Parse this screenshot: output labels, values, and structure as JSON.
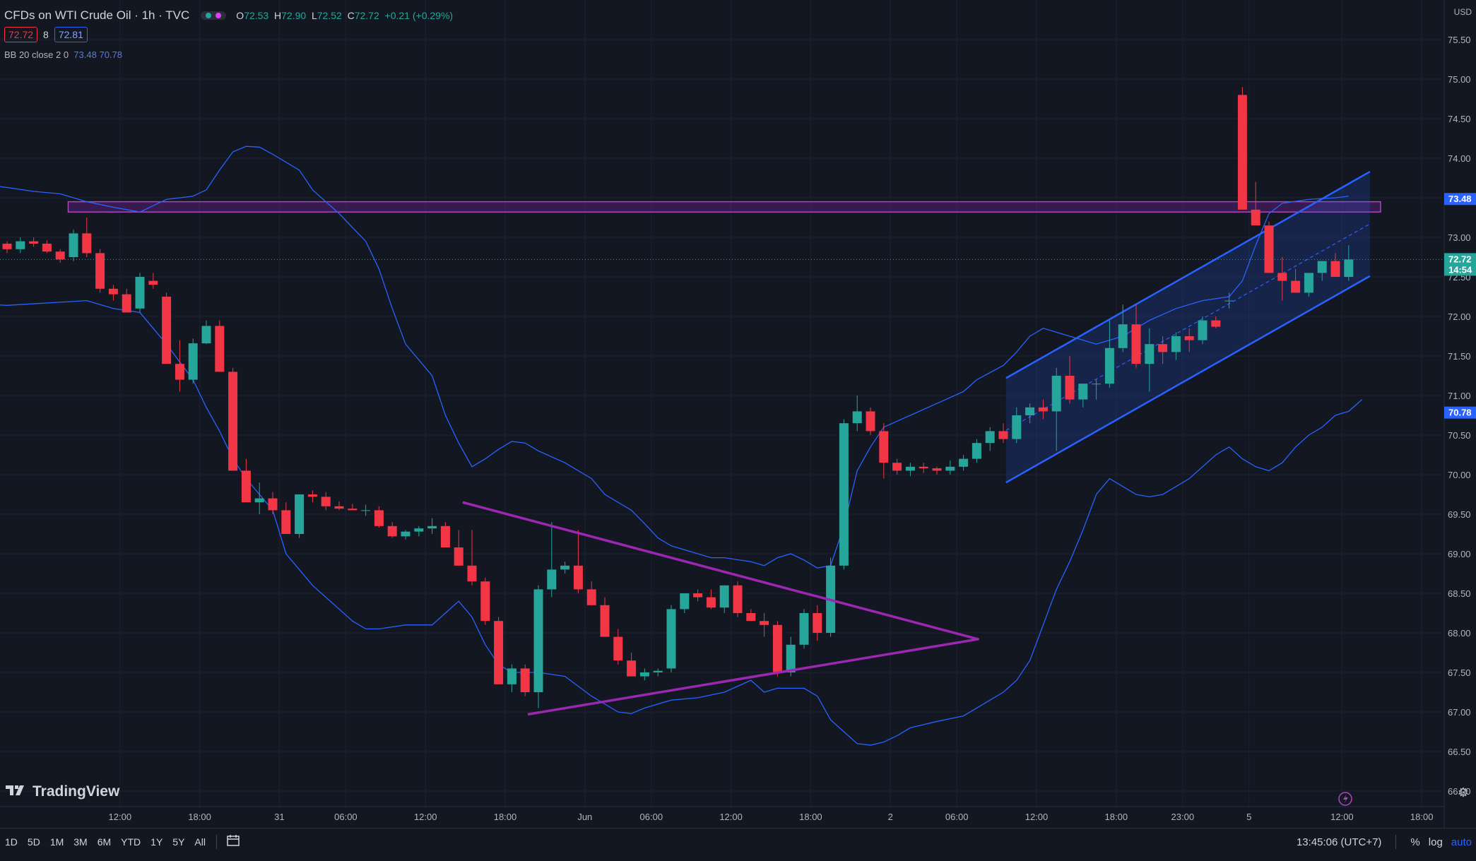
{
  "header": {
    "symbol_title": "CFDs on WTI Crude Oil · 1h · TVC",
    "status_colors": [
      "#26a69a",
      "#e040fb"
    ],
    "ohlc": [
      {
        "label": "O",
        "value": "72.53"
      },
      {
        "label": "H",
        "value": "72.90"
      },
      {
        "label": "L",
        "value": "72.52"
      },
      {
        "label": "C",
        "value": "72.72"
      },
      {
        "label": "",
        "value": "+0.21 (+0.29%)"
      }
    ],
    "sell_price": "72.72",
    "spread": "8",
    "buy_price": "72.81"
  },
  "indicator": {
    "name": "BB 20 close 2 0",
    "upper": "73.48",
    "lower": "70.78"
  },
  "currency": "USD",
  "logo_text": "TradingView",
  "price_labels": [
    {
      "text": "73.48",
      "color": "#2962ff"
    },
    {
      "text": "72.72\n14:54",
      "color": "#26a69a"
    },
    {
      "text": "70.78",
      "color": "#2962ff"
    }
  ],
  "timeframes": [
    "1D",
    "5D",
    "1M",
    "3M",
    "6M",
    "YTD",
    "1Y",
    "5Y",
    "All"
  ],
  "bottom_right": {
    "clock": "13:45:06 (UTC+7)",
    "percent": "%",
    "log": "log",
    "auto": "auto"
  },
  "icons": {
    "calendar": "calendar-range-icon",
    "settings": "gear-icon",
    "lightning": "lightning-icon",
    "logo": "tradingview-logo-icon"
  },
  "colors": {
    "background": "#131722",
    "up": "#26a69a",
    "down": "#f23645",
    "bb": "#2962ff",
    "pattern": "#9c27b0",
    "resistance_fill": "#7b1fa2",
    "channel": "#2962ff"
  },
  "chart_data": {
    "type": "candlestick",
    "title": "CFDs on WTI Crude Oil · 1h · TVC",
    "ylim": [
      65.8,
      75.9
    ],
    "y_ticks": [
      "75.50",
      "75.00",
      "74.50",
      "74.00",
      "73.50",
      "73.00",
      "72.50",
      "72.00",
      "71.50",
      "71.00",
      "70.50",
      "70.00",
      "69.50",
      "69.00",
      "68.50",
      "68.00",
      "67.50",
      "67.00",
      "66.50",
      "66.00"
    ],
    "x_ticks": [
      {
        "i": 8.5,
        "label": "12:00"
      },
      {
        "i": 14.5,
        "label": "18:00"
      },
      {
        "i": 20.5,
        "label": "31"
      },
      {
        "i": 25.5,
        "label": "06:00"
      },
      {
        "i": 31.5,
        "label": "12:00"
      },
      {
        "i": 37.5,
        "label": "18:00"
      },
      {
        "i": 43.5,
        "label": "Jun"
      },
      {
        "i": 48.5,
        "label": "06:00"
      },
      {
        "i": 54.5,
        "label": "12:00"
      },
      {
        "i": 60.5,
        "label": "18:00"
      },
      {
        "i": 66.5,
        "label": "2"
      },
      {
        "i": 71.5,
        "label": "06:00"
      },
      {
        "i": 77.5,
        "label": "12:00"
      },
      {
        "i": 83.5,
        "label": "18:00"
      },
      {
        "i": 88.5,
        "label": "23:00"
      },
      {
        "i": 93.5,
        "label": "5"
      },
      {
        "i": 100.5,
        "label": "12:00"
      },
      {
        "i": 106.5,
        "label": "18:00"
      }
    ],
    "candles": [
      [
        72.92,
        72.95,
        72.8,
        72.85
      ],
      [
        72.85,
        73.0,
        72.8,
        72.95
      ],
      [
        72.95,
        73.0,
        72.88,
        72.92
      ],
      [
        72.92,
        72.96,
        72.8,
        72.82
      ],
      [
        72.82,
        72.85,
        72.68,
        72.72
      ],
      [
        72.75,
        73.1,
        72.7,
        73.05
      ],
      [
        73.05,
        73.25,
        72.75,
        72.8
      ],
      [
        72.8,
        72.85,
        72.3,
        72.35
      ],
      [
        72.35,
        72.4,
        72.2,
        72.28
      ],
      [
        72.28,
        72.35,
        72.05,
        72.05
      ],
      [
        72.1,
        72.55,
        72.05,
        72.5
      ],
      [
        72.45,
        72.55,
        72.35,
        72.4
      ],
      [
        72.25,
        72.3,
        71.4,
        71.4
      ],
      [
        71.4,
        71.7,
        71.05,
        71.2
      ],
      [
        71.2,
        71.72,
        71.15,
        71.66
      ],
      [
        71.66,
        71.95,
        71.65,
        71.88
      ],
      [
        71.88,
        71.95,
        71.3,
        71.3
      ],
      [
        71.3,
        71.35,
        70.05,
        70.05
      ],
      [
        70.05,
        70.2,
        69.65,
        69.65
      ],
      [
        69.65,
        69.9,
        69.5,
        69.7
      ],
      [
        69.7,
        69.78,
        69.5,
        69.55
      ],
      [
        69.55,
        69.65,
        69.25,
        69.25
      ],
      [
        69.25,
        69.7,
        69.2,
        69.75
      ],
      [
        69.75,
        69.8,
        69.65,
        69.72
      ],
      [
        69.72,
        69.78,
        69.55,
        69.6
      ],
      [
        69.6,
        69.66,
        69.55,
        69.57
      ],
      [
        69.57,
        69.63,
        69.55,
        69.55
      ],
      [
        69.55,
        69.62,
        69.48,
        69.55
      ],
      [
        69.55,
        69.6,
        69.33,
        69.35
      ],
      [
        69.35,
        69.4,
        69.2,
        69.22
      ],
      [
        69.22,
        69.3,
        69.18,
        69.28
      ],
      [
        69.28,
        69.35,
        69.22,
        69.32
      ],
      [
        69.32,
        69.45,
        69.25,
        69.35
      ],
      [
        69.35,
        69.4,
        69.08,
        69.08
      ],
      [
        69.08,
        69.3,
        68.85,
        68.85
      ],
      [
        68.85,
        69.3,
        68.6,
        68.65
      ],
      [
        68.65,
        68.7,
        68.1,
        68.15
      ],
      [
        68.15,
        68.2,
        67.35,
        67.35
      ],
      [
        67.35,
        67.6,
        67.25,
        67.55
      ],
      [
        67.55,
        67.6,
        67.2,
        67.25
      ],
      [
        67.25,
        68.6,
        67.05,
        68.55
      ],
      [
        68.55,
        69.4,
        68.45,
        68.8
      ],
      [
        68.8,
        68.9,
        68.75,
        68.85
      ],
      [
        68.85,
        69.3,
        68.5,
        68.55
      ],
      [
        68.55,
        68.65,
        68.35,
        68.35
      ],
      [
        68.35,
        68.45,
        67.95,
        67.95
      ],
      [
        67.95,
        68.05,
        67.6,
        67.65
      ],
      [
        67.65,
        67.75,
        67.45,
        67.45
      ],
      [
        67.45,
        67.55,
        67.4,
        67.5
      ],
      [
        67.5,
        67.55,
        67.45,
        67.52
      ],
      [
        67.55,
        68.35,
        67.5,
        68.3
      ],
      [
        68.3,
        68.5,
        68.25,
        68.5
      ],
      [
        68.5,
        68.55,
        68.4,
        68.45
      ],
      [
        68.45,
        68.55,
        68.3,
        68.32
      ],
      [
        68.32,
        68.6,
        68.25,
        68.6
      ],
      [
        68.6,
        68.65,
        68.2,
        68.25
      ],
      [
        68.25,
        68.3,
        68.15,
        68.15
      ],
      [
        68.15,
        68.25,
        67.95,
        68.1
      ],
      [
        68.1,
        68.15,
        67.45,
        67.5
      ],
      [
        67.5,
        67.95,
        67.45,
        67.85
      ],
      [
        67.85,
        68.3,
        67.8,
        68.25
      ],
      [
        68.25,
        68.35,
        67.9,
        68.0
      ],
      [
        68.0,
        68.95,
        67.95,
        68.85
      ],
      [
        68.85,
        70.7,
        68.8,
        70.65
      ],
      [
        70.65,
        71.0,
        70.55,
        70.8
      ],
      [
        70.8,
        70.85,
        70.5,
        70.55
      ],
      [
        70.55,
        70.65,
        69.95,
        70.15
      ],
      [
        70.15,
        70.2,
        70.0,
        70.05
      ],
      [
        70.05,
        70.15,
        69.98,
        70.1
      ],
      [
        70.1,
        70.15,
        70.02,
        70.08
      ],
      [
        70.08,
        70.1,
        70.0,
        70.05
      ],
      [
        70.05,
        70.18,
        70.0,
        70.1
      ],
      [
        70.1,
        70.25,
        70.05,
        70.2
      ],
      [
        70.2,
        70.45,
        70.15,
        70.4
      ],
      [
        70.4,
        70.6,
        70.3,
        70.55
      ],
      [
        70.55,
        70.65,
        70.4,
        70.45
      ],
      [
        70.45,
        70.85,
        70.4,
        70.75
      ],
      [
        70.75,
        70.9,
        70.65,
        70.85
      ],
      [
        70.85,
        70.95,
        70.7,
        70.8
      ],
      [
        70.8,
        71.35,
        70.3,
        71.25
      ],
      [
        71.25,
        71.5,
        70.9,
        70.95
      ],
      [
        70.95,
        71.15,
        70.85,
        71.15
      ],
      [
        71.15,
        71.2,
        70.95,
        71.15
      ],
      [
        71.15,
        71.95,
        71.1,
        71.6
      ],
      [
        71.6,
        72.15,
        71.55,
        71.9
      ],
      [
        71.9,
        72.15,
        71.35,
        71.4
      ],
      [
        71.4,
        71.85,
        71.05,
        71.65
      ],
      [
        71.65,
        71.75,
        71.4,
        71.55
      ],
      [
        71.55,
        71.8,
        71.45,
        71.75
      ],
      [
        71.75,
        71.85,
        71.55,
        71.7
      ],
      [
        71.7,
        72.0,
        71.65,
        71.95
      ],
      [
        71.95,
        72.0,
        71.85,
        71.87
      ],
      [
        72.2,
        72.3,
        72.1,
        72.2
      ],
      [
        74.8,
        74.9,
        73.35,
        73.35
      ],
      [
        73.35,
        73.7,
        73.2,
        73.15
      ],
      [
        73.15,
        73.2,
        72.55,
        72.55
      ],
      [
        72.55,
        72.75,
        72.2,
        72.45
      ],
      [
        72.45,
        72.6,
        72.3,
        72.3
      ],
      [
        72.3,
        72.55,
        72.25,
        72.55
      ],
      [
        72.55,
        72.7,
        72.45,
        72.7
      ],
      [
        72.7,
        72.8,
        72.55,
        72.5
      ],
      [
        72.5,
        72.9,
        72.45,
        72.72
      ]
    ],
    "bollinger": {
      "upper": [
        [
          -1,
          73.65
        ],
        [
          0,
          73.63
        ],
        [
          2,
          73.58
        ],
        [
          4,
          73.55
        ],
        [
          6,
          73.45
        ],
        [
          8,
          73.38
        ],
        [
          10,
          73.32
        ],
        [
          12,
          73.48
        ],
        [
          14,
          73.52
        ],
        [
          15,
          73.6
        ],
        [
          16,
          73.85
        ],
        [
          17,
          74.08
        ],
        [
          18,
          74.15
        ],
        [
          19,
          74.14
        ],
        [
          20,
          74.05
        ],
        [
          22,
          73.85
        ],
        [
          23,
          73.6
        ],
        [
          25,
          73.3
        ],
        [
          27,
          72.95
        ],
        [
          28,
          72.6
        ],
        [
          29,
          72.1
        ],
        [
          30,
          71.65
        ],
        [
          32,
          71.25
        ],
        [
          33,
          70.75
        ],
        [
          34,
          70.4
        ],
        [
          35,
          70.1
        ],
        [
          36,
          70.2
        ],
        [
          37,
          70.32
        ],
        [
          38,
          70.42
        ],
        [
          39,
          70.4
        ],
        [
          40,
          70.3
        ],
        [
          42,
          70.15
        ],
        [
          44,
          69.95
        ],
        [
          45,
          69.75
        ],
        [
          47,
          69.55
        ],
        [
          48,
          69.38
        ],
        [
          49,
          69.2
        ],
        [
          50,
          69.1
        ],
        [
          52,
          69.0
        ],
        [
          53,
          68.95
        ],
        [
          54,
          68.95
        ],
        [
          56,
          68.9
        ],
        [
          57,
          68.85
        ],
        [
          58,
          68.95
        ],
        [
          59,
          69.0
        ],
        [
          60,
          68.92
        ],
        [
          61,
          68.82
        ],
        [
          62,
          68.85
        ],
        [
          63,
          69.35
        ],
        [
          64,
          70.05
        ],
        [
          65,
          70.35
        ],
        [
          66,
          70.6
        ],
        [
          68,
          70.75
        ],
        [
          70,
          70.9
        ],
        [
          72,
          71.05
        ],
        [
          73,
          71.2
        ],
        [
          75,
          71.38
        ],
        [
          76,
          71.55
        ],
        [
          77,
          71.75
        ],
        [
          78,
          71.85
        ],
        [
          79,
          71.8
        ],
        [
          80,
          71.75
        ],
        [
          82,
          71.65
        ],
        [
          84,
          71.75
        ],
        [
          86,
          71.95
        ],
        [
          88,
          72.1
        ],
        [
          90,
          72.2
        ],
        [
          92,
          72.25
        ],
        [
          93,
          72.45
        ],
        [
          94,
          72.9
        ],
        [
          95,
          73.3
        ],
        [
          96,
          73.43
        ],
        [
          98,
          73.48
        ],
        [
          100,
          73.5
        ],
        [
          101,
          73.52
        ]
      ],
      "lower": [
        [
          -1,
          72.15
        ],
        [
          0,
          72.14
        ],
        [
          2,
          72.16
        ],
        [
          4,
          72.18
        ],
        [
          6,
          72.2
        ],
        [
          8,
          72.1
        ],
        [
          10,
          72.05
        ],
        [
          12,
          71.65
        ],
        [
          14,
          71.2
        ],
        [
          15,
          70.85
        ],
        [
          16,
          70.55
        ],
        [
          17,
          70.2
        ],
        [
          18,
          69.95
        ],
        [
          19,
          69.75
        ],
        [
          20,
          69.55
        ],
        [
          21,
          69.0
        ],
        [
          22,
          68.8
        ],
        [
          23,
          68.6
        ],
        [
          25,
          68.3
        ],
        [
          26,
          68.15
        ],
        [
          27,
          68.05
        ],
        [
          28,
          68.05
        ],
        [
          30,
          68.1
        ],
        [
          32,
          68.1
        ],
        [
          33,
          68.25
        ],
        [
          34,
          68.4
        ],
        [
          35,
          68.2
        ],
        [
          36,
          67.85
        ],
        [
          37,
          67.6
        ],
        [
          38,
          67.5
        ],
        [
          40,
          67.5
        ],
        [
          42,
          67.45
        ],
        [
          44,
          67.2
        ],
        [
          46,
          67.0
        ],
        [
          47,
          66.98
        ],
        [
          48,
          67.05
        ],
        [
          50,
          67.15
        ],
        [
          52,
          67.18
        ],
        [
          54,
          67.25
        ],
        [
          56,
          67.4
        ],
        [
          57,
          67.25
        ],
        [
          58,
          67.3
        ],
        [
          60,
          67.3
        ],
        [
          61,
          67.2
        ],
        [
          62,
          66.9
        ],
        [
          63,
          66.75
        ],
        [
          64,
          66.6
        ],
        [
          65,
          66.58
        ],
        [
          66,
          66.62
        ],
        [
          67,
          66.7
        ],
        [
          68,
          66.8
        ],
        [
          70,
          66.88
        ],
        [
          72,
          66.95
        ],
        [
          73,
          67.05
        ],
        [
          74,
          67.15
        ],
        [
          75,
          67.25
        ],
        [
          76,
          67.4
        ],
        [
          77,
          67.65
        ],
        [
          78,
          68.1
        ],
        [
          79,
          68.55
        ],
        [
          80,
          68.9
        ],
        [
          81,
          69.3
        ],
        [
          82,
          69.75
        ],
        [
          83,
          69.95
        ],
        [
          84,
          69.85
        ],
        [
          85,
          69.75
        ],
        [
          86,
          69.72
        ],
        [
          87,
          69.75
        ],
        [
          88,
          69.85
        ],
        [
          89,
          69.95
        ],
        [
          90,
          70.1
        ],
        [
          91,
          70.25
        ],
        [
          92,
          70.35
        ],
        [
          93,
          70.2
        ],
        [
          94,
          70.1
        ],
        [
          95,
          70.05
        ],
        [
          96,
          70.15
        ],
        [
          97,
          70.35
        ],
        [
          98,
          70.5
        ],
        [
          99,
          70.6
        ],
        [
          100,
          70.75
        ],
        [
          101,
          70.8
        ],
        [
          102,
          70.95
        ]
      ]
    },
    "triangle": [
      [
        34.3,
        69.65
      ],
      [
        73.1,
        67.92
      ],
      [
        39.2,
        66.97
      ]
    ],
    "resistance_zone": {
      "i_start": 4.6,
      "i_end": 103.4,
      "y_top": 73.45,
      "y_bottom": 73.32
    },
    "channel": {
      "upper": [
        [
          75.2,
          71.22
        ],
        [
          102.6,
          73.83
        ]
      ],
      "lower": [
        [
          75.2,
          69.9
        ],
        [
          102.6,
          72.51
        ]
      ]
    },
    "last_price": 72.72,
    "upper_band_last": 73.48,
    "lower_band_last": 70.78
  }
}
